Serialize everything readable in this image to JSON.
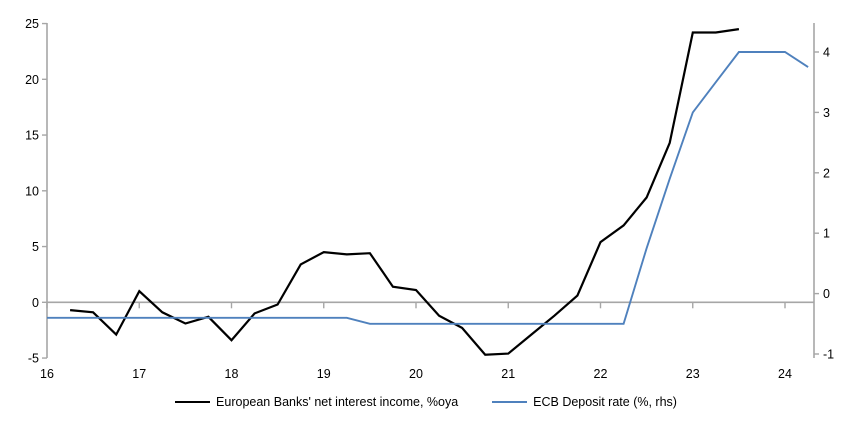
{
  "chart_data": {
    "type": "line",
    "title": "",
    "legend_position": "bottom",
    "grid": "zero-line-only",
    "x_axis": {
      "ticks": [
        16,
        17,
        18,
        19,
        20,
        21,
        22,
        23,
        24
      ],
      "range": [
        16,
        24.31
      ]
    },
    "left_axis": {
      "ticks": [
        25,
        20,
        15,
        10,
        5,
        0,
        -5
      ],
      "range": [
        -5.3,
        25.1
      ]
    },
    "right_axis": {
      "ticks": [
        4,
        3,
        2,
        1,
        0,
        -1
      ],
      "range": [
        -1.07,
        4.48
      ]
    },
    "series": [
      {
        "name": "European Banks' net interest income, %oya",
        "axis": "left",
        "color": "#000000",
        "x": [
          16.25,
          16.5,
          16.75,
          17.0,
          17.25,
          17.5,
          17.75,
          18.0,
          18.25,
          18.5,
          18.75,
          19.0,
          19.25,
          19.5,
          19.75,
          20.0,
          20.25,
          20.5,
          20.75,
          21.0,
          21.25,
          21.5,
          21.75,
          22.0,
          22.25,
          22.5,
          22.75,
          23.0,
          23.25,
          23.5
        ],
        "values": [
          -0.7,
          -0.9,
          -2.9,
          1.0,
          -0.9,
          -1.9,
          -1.3,
          -3.4,
          -1.0,
          -0.2,
          3.4,
          4.5,
          4.3,
          4.4,
          1.4,
          1.1,
          -1.2,
          -2.3,
          -4.7,
          -4.6,
          -2.9,
          -1.2,
          0.6,
          5.4,
          6.9,
          9.4,
          14.3,
          24.2,
          24.2,
          24.5
        ]
      },
      {
        "name": "ECB Deposit rate (%, rhs)",
        "axis": "right",
        "color": "#4F81BD",
        "x": [
          16.0,
          19.25,
          19.5,
          22.25,
          22.5,
          22.75,
          23.0,
          23.25,
          23.5,
          24.0,
          24.25
        ],
        "values": [
          -0.4,
          -0.4,
          -0.5,
          -0.5,
          0.75,
          1.9,
          3.0,
          3.5,
          4.0,
          4.0,
          3.75
        ]
      }
    ]
  },
  "legend": {
    "items": [
      {
        "label": "European Banks' net interest income, %oya"
      },
      {
        "label": "ECB Deposit rate (%, rhs)"
      }
    ]
  },
  "colors": {
    "background": "#ffffff",
    "axis": "#A6A6A6",
    "zero_line": "#A6A6A6",
    "text": "#000000",
    "nii_line": "#000000",
    "ecb_line": "#4F81BD"
  }
}
